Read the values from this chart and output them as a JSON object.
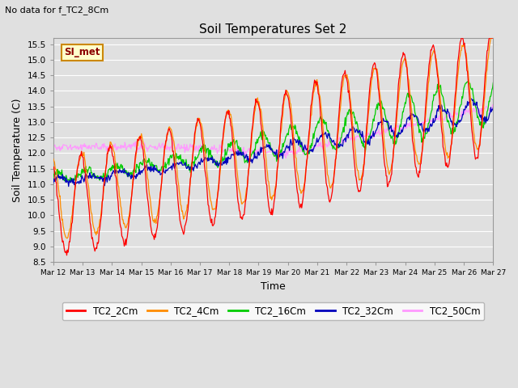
{
  "title": "Soil Temperatures Set 2",
  "subtitle": "No data for f_TC2_8Cm",
  "xlabel": "Time",
  "ylabel": "Soil Temperature (C)",
  "ylim": [
    8.5,
    15.7
  ],
  "background_color": "#e0e0e0",
  "plot_bg_color": "#d8d8d8",
  "series_colors": {
    "TC2_2Cm": "#ff0000",
    "TC2_4Cm": "#ff8c00",
    "TC2_16Cm": "#00cc00",
    "TC2_32Cm": "#0000bb",
    "TC2_50Cm": "#ff99ff"
  },
  "legend_label": "SI_met",
  "legend_bg": "#ffffcc",
  "legend_border": "#cc8800",
  "x_tick_labels": [
    "Mar 12",
    "Mar 13",
    "Mar 14",
    "Mar 15",
    "Mar 16",
    "Mar 17",
    "Mar 18",
    "Mar 19",
    "Mar 20",
    "Mar 21",
    "Mar 22",
    "Mar 23",
    "Mar 24",
    "Mar 25",
    "Mar 26",
    "Mar 27"
  ],
  "n_points": 720
}
